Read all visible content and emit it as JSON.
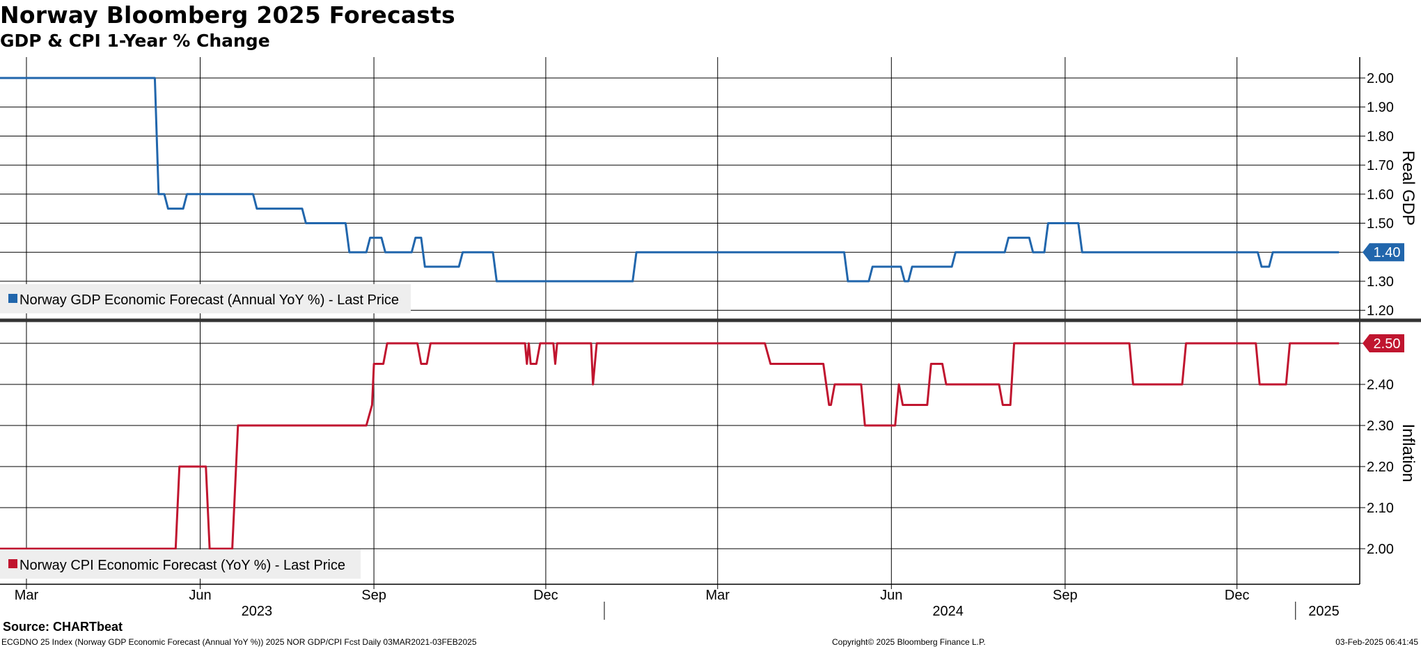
{
  "header": {
    "title": "Norway Bloomberg 2025 Forecasts",
    "subtitle": "GDP & CPI 1-Year % Change"
  },
  "footer": {
    "source": "Source: CHARTbeat",
    "description": "ECGDNO 25 Index (Norway GDP Economic Forecast (Annual YoY %)) 2025 NOR GDP/CPI Fcst  Daily 03MAR2021-03FEB2025",
    "copyright": "Copyright© 2025 Bloomberg Finance L.P.",
    "timestamp": "03-Feb-2025 06:41:45"
  },
  "colors": {
    "gdp": "#2166ac",
    "cpi": "#c0152f",
    "grid": "#000000",
    "legend_bg": "#eeeeee"
  },
  "chart_data": [
    {
      "type": "line",
      "panel": "top",
      "axis_label": "Real GDP",
      "y_ticks": [
        "2.00",
        "1.90",
        "1.80",
        "1.70",
        "1.60",
        "1.50",
        "1.40",
        "1.30",
        "1.20"
      ],
      "ylim": [
        1.17,
        2.07
      ],
      "grid": true,
      "legend": "bottom-left",
      "last_value_label": "1.40",
      "series": [
        {
          "name": "Norway GDP Economic Forecast (Annual YoY %) - Last Price",
          "values": [
            [
              "2023-02-15",
              2.0
            ],
            [
              "2023-05-08",
              2.0
            ],
            [
              "2023-05-10",
              1.6
            ],
            [
              "2023-05-13",
              1.6
            ],
            [
              "2023-05-15",
              1.55
            ],
            [
              "2023-05-23",
              1.55
            ],
            [
              "2023-05-25",
              1.6
            ],
            [
              "2023-06-29",
              1.6
            ],
            [
              "2023-07-01",
              1.55
            ],
            [
              "2023-07-25",
              1.55
            ],
            [
              "2023-07-27",
              1.5
            ],
            [
              "2023-08-17",
              1.5
            ],
            [
              "2023-08-19",
              1.4
            ],
            [
              "2023-08-28",
              1.4
            ],
            [
              "2023-08-30",
              1.45
            ],
            [
              "2023-09-05",
              1.45
            ],
            [
              "2023-09-07",
              1.4
            ],
            [
              "2023-09-21",
              1.4
            ],
            [
              "2023-09-23",
              1.45
            ],
            [
              "2023-09-26",
              1.45
            ],
            [
              "2023-09-28",
              1.35
            ],
            [
              "2023-10-16",
              1.35
            ],
            [
              "2023-10-18",
              1.4
            ],
            [
              "2023-11-03",
              1.4
            ],
            [
              "2023-11-05",
              1.3
            ],
            [
              "2024-01-16",
              1.3
            ],
            [
              "2024-01-18",
              1.4
            ],
            [
              "2024-05-07",
              1.4
            ],
            [
              "2024-05-09",
              1.3
            ],
            [
              "2024-05-20",
              1.3
            ],
            [
              "2024-05-22",
              1.35
            ],
            [
              "2024-06-06",
              1.35
            ],
            [
              "2024-06-08",
              1.3
            ],
            [
              "2024-06-10",
              1.3
            ],
            [
              "2024-06-12",
              1.35
            ],
            [
              "2024-07-03",
              1.35
            ],
            [
              "2024-07-05",
              1.4
            ],
            [
              "2024-07-31",
              1.4
            ],
            [
              "2024-08-02",
              1.45
            ],
            [
              "2024-08-13",
              1.45
            ],
            [
              "2024-08-15",
              1.4
            ],
            [
              "2024-08-21",
              1.4
            ],
            [
              "2024-08-23",
              1.5
            ],
            [
              "2024-09-08",
              1.5
            ],
            [
              "2024-09-10",
              1.4
            ],
            [
              "2024-12-12",
              1.4
            ],
            [
              "2024-12-14",
              1.35
            ],
            [
              "2024-12-18",
              1.35
            ],
            [
              "2024-12-20",
              1.4
            ],
            [
              "2025-01-24",
              1.4
            ]
          ]
        }
      ]
    },
    {
      "type": "line",
      "panel": "bottom",
      "axis_label": "Inflation",
      "y_ticks": [
        "2.50",
        "2.40",
        "2.30",
        "2.20",
        "2.10",
        "2.00"
      ],
      "ylim": [
        1.93,
        2.575
      ],
      "grid": true,
      "legend": "bottom-left",
      "last_value_label": "2.50",
      "series": [
        {
          "name": "Norway CPI Economic Forecast (YoY %) - Last Price",
          "values": [
            [
              "2023-02-15",
              2.0
            ],
            [
              "2023-05-19",
              2.0
            ],
            [
              "2023-05-21",
              2.2
            ],
            [
              "2023-06-04",
              2.2
            ],
            [
              "2023-06-06",
              2.0
            ],
            [
              "2023-06-18",
              2.0
            ],
            [
              "2023-06-21",
              2.3
            ],
            [
              "2023-08-28",
              2.3
            ],
            [
              "2023-08-31",
              2.35
            ],
            [
              "2023-09-01",
              2.45
            ],
            [
              "2023-09-06",
              2.45
            ],
            [
              "2023-09-08",
              2.5
            ],
            [
              "2023-09-24",
              2.5
            ],
            [
              "2023-09-26",
              2.45
            ],
            [
              "2023-09-29",
              2.45
            ],
            [
              "2023-10-01",
              2.5
            ],
            [
              "2023-11-20",
              2.5
            ],
            [
              "2023-11-21",
              2.45
            ],
            [
              "2023-11-22",
              2.5
            ],
            [
              "2023-11-23",
              2.45
            ],
            [
              "2023-11-26",
              2.45
            ],
            [
              "2023-11-28",
              2.5
            ],
            [
              "2023-12-05",
              2.5
            ],
            [
              "2023-12-06",
              2.45
            ],
            [
              "2023-12-07",
              2.5
            ],
            [
              "2023-12-25",
              2.5
            ],
            [
              "2023-12-26",
              2.4
            ],
            [
              "2023-12-28",
              2.5
            ],
            [
              "2024-03-26",
              2.5
            ],
            [
              "2024-03-29",
              2.45
            ],
            [
              "2024-04-26",
              2.45
            ],
            [
              "2024-04-29",
              2.35
            ],
            [
              "2024-04-30",
              2.35
            ],
            [
              "2024-05-02",
              2.4
            ],
            [
              "2024-05-16",
              2.4
            ],
            [
              "2024-05-18",
              2.3
            ],
            [
              "2024-06-03",
              2.3
            ],
            [
              "2024-06-05",
              2.4
            ],
            [
              "2024-06-07",
              2.35
            ],
            [
              "2024-06-20",
              2.35
            ],
            [
              "2024-06-22",
              2.45
            ],
            [
              "2024-06-28",
              2.45
            ],
            [
              "2024-06-30",
              2.4
            ],
            [
              "2024-07-28",
              2.4
            ],
            [
              "2024-07-30",
              2.35
            ],
            [
              "2024-08-03",
              2.35
            ],
            [
              "2024-08-05",
              2.5
            ],
            [
              "2024-10-05",
              2.5
            ],
            [
              "2024-10-07",
              2.4
            ],
            [
              "2024-11-02",
              2.4
            ],
            [
              "2024-11-04",
              2.5
            ],
            [
              "2024-12-11",
              2.5
            ],
            [
              "2024-12-13",
              2.4
            ],
            [
              "2024-12-27",
              2.4
            ],
            [
              "2024-12-29",
              2.5
            ],
            [
              "2025-01-24",
              2.5
            ]
          ]
        }
      ]
    }
  ],
  "x_axis": {
    "month_ticks": [
      {
        "date": "2023-03-01",
        "label": "Mar"
      },
      {
        "date": "2023-06-01",
        "label": "Jun"
      },
      {
        "date": "2023-09-01",
        "label": "Sep"
      },
      {
        "date": "2023-12-01",
        "label": "Dec"
      },
      {
        "date": "2024-03-01",
        "label": "Mar"
      },
      {
        "date": "2024-06-01",
        "label": "Jun"
      },
      {
        "date": "2024-09-01",
        "label": "Sep"
      },
      {
        "date": "2024-12-01",
        "label": "Dec"
      }
    ],
    "years": [
      {
        "center": "2023-07-01",
        "label": "2023"
      },
      {
        "center": "2024-07-01",
        "label": "2024"
      },
      {
        "center": "2025-01-16",
        "label": "2025"
      }
    ],
    "year_boundaries": [
      "2024-01-01",
      "2025-01-01"
    ],
    "xlim": [
      "2023-02-15",
      "2025-02-04"
    ]
  }
}
